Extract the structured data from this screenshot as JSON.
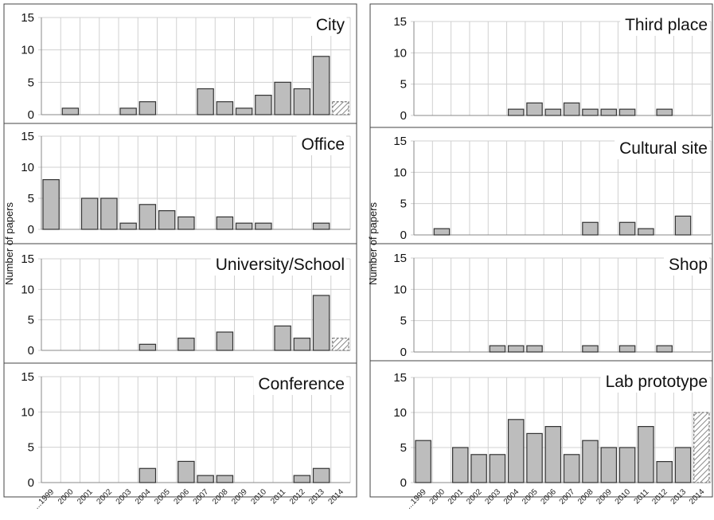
{
  "ylabel": "Number of papers",
  "colors": {
    "bar_fill": "#bdbdbd",
    "bar_stroke": "#333333",
    "hatch_stroke": "#777777",
    "grid": "#d0d0d0",
    "frame": "#444444"
  },
  "chart_data": [
    {
      "type": "bar",
      "title": "City",
      "categories": [
        "...1999",
        "2000",
        "2001",
        "2002",
        "2003",
        "2004",
        "2005",
        "2006",
        "2007",
        "2008",
        "2009",
        "2010",
        "2011",
        "2012",
        "2013",
        "2014"
      ],
      "values": [
        0,
        1,
        0,
        0,
        1,
        2,
        0,
        0,
        4,
        2,
        1,
        3,
        5,
        4,
        9,
        2
      ],
      "hatched_last": true,
      "ylim": [
        0,
        15
      ],
      "yticks": [
        0,
        5,
        10,
        15
      ],
      "grid": true
    },
    {
      "type": "bar",
      "title": "Office",
      "categories": [
        "...1999",
        "2000",
        "2001",
        "2002",
        "2003",
        "2004",
        "2005",
        "2006",
        "2007",
        "2008",
        "2009",
        "2010",
        "2011",
        "2012",
        "2013",
        "2014"
      ],
      "values": [
        8,
        0,
        5,
        5,
        1,
        4,
        3,
        2,
        0,
        2,
        1,
        1,
        0,
        0,
        1,
        0
      ],
      "hatched_last": false,
      "ylim": [
        0,
        15
      ],
      "yticks": [
        0,
        5,
        10,
        15
      ],
      "grid": true
    },
    {
      "type": "bar",
      "title": "University/School",
      "categories": [
        "...1999",
        "2000",
        "2001",
        "2002",
        "2003",
        "2004",
        "2005",
        "2006",
        "2007",
        "2008",
        "2009",
        "2010",
        "2011",
        "2012",
        "2013",
        "2014"
      ],
      "values": [
        0,
        0,
        0,
        0,
        0,
        1,
        0,
        2,
        0,
        3,
        0,
        0,
        4,
        2,
        9,
        2
      ],
      "hatched_last": true,
      "ylim": [
        0,
        15
      ],
      "yticks": [
        0,
        5,
        10,
        15
      ],
      "grid": true
    },
    {
      "type": "bar",
      "title": "Conference",
      "categories": [
        "...1999",
        "2000",
        "2001",
        "2002",
        "2003",
        "2004",
        "2005",
        "2006",
        "2007",
        "2008",
        "2009",
        "2010",
        "2011",
        "2012",
        "2013",
        "2014"
      ],
      "values": [
        0,
        0,
        0,
        0,
        0,
        2,
        0,
        3,
        1,
        1,
        0,
        0,
        0,
        1,
        2,
        0
      ],
      "hatched_last": false,
      "ylim": [
        0,
        15
      ],
      "yticks": [
        0,
        5,
        10,
        15
      ],
      "grid": true,
      "show_xlabels": true
    },
    {
      "type": "bar",
      "title": "Third place",
      "categories": [
        "...1999",
        "2000",
        "2001",
        "2002",
        "2003",
        "2004",
        "2005",
        "2006",
        "2007",
        "2008",
        "2009",
        "2010",
        "2011",
        "2012",
        "2013",
        "2014"
      ],
      "values": [
        0,
        0,
        0,
        0,
        0,
        1,
        2,
        1,
        2,
        1,
        1,
        1,
        0,
        1,
        0,
        0
      ],
      "hatched_last": false,
      "ylim": [
        0,
        15
      ],
      "yticks": [
        0,
        5,
        10,
        15
      ],
      "grid": true
    },
    {
      "type": "bar",
      "title": "Cultural site",
      "categories": [
        "...1999",
        "2000",
        "2001",
        "2002",
        "2003",
        "2004",
        "2005",
        "2006",
        "2007",
        "2008",
        "2009",
        "2010",
        "2011",
        "2012",
        "2013",
        "2014"
      ],
      "values": [
        0,
        1,
        0,
        0,
        0,
        0,
        0,
        0,
        0,
        2,
        0,
        2,
        1,
        0,
        3,
        0
      ],
      "hatched_last": false,
      "ylim": [
        0,
        15
      ],
      "yticks": [
        0,
        5,
        10,
        15
      ],
      "grid": true
    },
    {
      "type": "bar",
      "title": "Shop",
      "categories": [
        "...1999",
        "2000",
        "2001",
        "2002",
        "2003",
        "2004",
        "2005",
        "2006",
        "2007",
        "2008",
        "2009",
        "2010",
        "2011",
        "2012",
        "2013",
        "2014"
      ],
      "values": [
        0,
        0,
        0,
        0,
        1,
        1,
        1,
        0,
        0,
        1,
        0,
        1,
        0,
        1,
        0,
        0
      ],
      "hatched_last": false,
      "ylim": [
        0,
        15
      ],
      "yticks": [
        0,
        5,
        10,
        15
      ],
      "grid": true
    },
    {
      "type": "bar",
      "title": "Lab prototype",
      "categories": [
        "...1999",
        "2000",
        "2001",
        "2002",
        "2003",
        "2004",
        "2005",
        "2006",
        "2007",
        "2008",
        "2009",
        "2010",
        "2011",
        "2012",
        "2013",
        "2014"
      ],
      "values": [
        6,
        0,
        5,
        4,
        4,
        9,
        7,
        8,
        4,
        6,
        5,
        5,
        8,
        3,
        5,
        10
      ],
      "hatched_last": true,
      "ylim": [
        0,
        15
      ],
      "yticks": [
        0,
        5,
        10,
        15
      ],
      "grid": true,
      "show_xlabels": true
    }
  ]
}
